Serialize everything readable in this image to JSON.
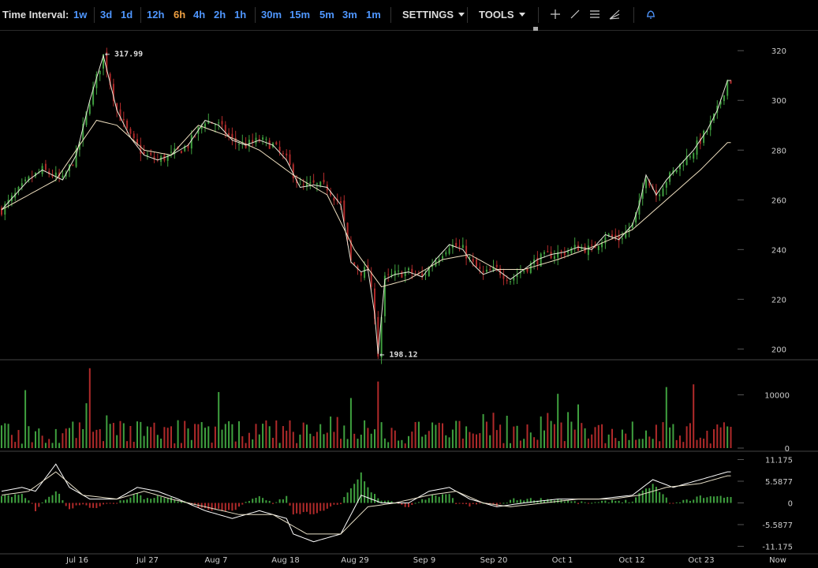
{
  "toolbar": {
    "time_interval_label": "Time Interval:",
    "timeframes": [
      {
        "label": "1w"
      },
      {
        "label": "3d"
      },
      {
        "label": "1d"
      },
      {
        "label": "12h"
      },
      {
        "label": "6h",
        "active": true
      },
      {
        "label": "4h"
      },
      {
        "label": "2h"
      },
      {
        "label": "1h"
      },
      {
        "label": "30m"
      },
      {
        "label": "15m"
      },
      {
        "label": "5m"
      },
      {
        "label": "3m"
      },
      {
        "label": "1m"
      }
    ],
    "settings_label": "SETTINGS",
    "tools_label": "TOOLS",
    "tool_icons": [
      "crosshair-icon",
      "line-tool-icon",
      "horizontal-lines-icon",
      "fan-tool-icon",
      "alert-bell-icon"
    ]
  },
  "chart_data": [
    {
      "type": "candlestick",
      "panel": "price",
      "y_ticks": [
        "320",
        "300",
        "280",
        "260",
        "240",
        "220",
        "200"
      ],
      "ylim": [
        196,
        328
      ],
      "high_label": "317.99",
      "low_label": "198.12",
      "x_ticks": [
        "Jul 16",
        "Jul 27",
        "Aug 7",
        "Aug 18",
        "Aug 29",
        "Sep 9",
        "Sep 20",
        "Oct 1",
        "Oct 12",
        "Oct 23",
        "Now"
      ],
      "approx_close": [
        [
          0,
          256
        ],
        [
          4,
          262
        ],
        [
          8,
          268
        ],
        [
          12,
          272
        ],
        [
          18,
          268
        ],
        [
          22,
          278
        ],
        [
          26,
          300
        ],
        [
          30,
          318
        ],
        [
          34,
          296
        ],
        [
          38,
          285
        ],
        [
          42,
          278
        ],
        [
          46,
          276
        ],
        [
          50,
          278
        ],
        [
          55,
          282
        ],
        [
          60,
          292
        ],
        [
          64,
          290
        ],
        [
          68,
          284
        ],
        [
          72,
          282
        ],
        [
          76,
          284
        ],
        [
          80,
          282
        ],
        [
          84,
          276
        ],
        [
          88,
          265
        ],
        [
          92,
          266
        ],
        [
          96,
          265
        ],
        [
          100,
          258
        ],
        [
          103,
          235
        ],
        [
          106,
          231
        ],
        [
          108,
          232
        ],
        [
          110,
          214
        ],
        [
          111,
          198
        ],
        [
          113,
          228
        ],
        [
          116,
          230
        ],
        [
          120,
          231
        ],
        [
          124,
          229
        ],
        [
          128,
          236
        ],
        [
          132,
          242
        ],
        [
          136,
          240
        ],
        [
          139,
          234
        ],
        [
          142,
          230
        ],
        [
          146,
          232
        ],
        [
          150,
          228
        ],
        [
          154,
          232
        ],
        [
          158,
          236
        ],
        [
          162,
          238
        ],
        [
          166,
          239
        ],
        [
          170,
          241
        ],
        [
          174,
          240
        ],
        [
          178,
          246
        ],
        [
          182,
          244
        ],
        [
          186,
          250
        ],
        [
          188,
          258
        ],
        [
          190,
          270
        ],
        [
          193,
          262
        ],
        [
          196,
          268
        ],
        [
          200,
          274
        ],
        [
          204,
          280
        ],
        [
          208,
          288
        ],
        [
          211,
          296
        ],
        [
          214,
          308
        ]
      ],
      "approx_ma": [
        [
          0,
          256
        ],
        [
          8,
          262
        ],
        [
          16,
          268
        ],
        [
          22,
          280
        ],
        [
          28,
          292
        ],
        [
          34,
          290
        ],
        [
          42,
          280
        ],
        [
          50,
          278
        ],
        [
          58,
          290
        ],
        [
          66,
          286
        ],
        [
          76,
          280
        ],
        [
          86,
          270
        ],
        [
          96,
          262
        ],
        [
          104,
          240
        ],
        [
          112,
          225
        ],
        [
          120,
          228
        ],
        [
          130,
          236
        ],
        [
          138,
          238
        ],
        [
          146,
          232
        ],
        [
          154,
          232
        ],
        [
          164,
          236
        ],
        [
          176,
          242
        ],
        [
          186,
          248
        ],
        [
          196,
          260
        ],
        [
          206,
          272
        ],
        [
          214,
          283
        ]
      ]
    },
    {
      "type": "bar",
      "panel": "volume",
      "y_ticks": [
        "10000",
        "0"
      ],
      "ylim": [
        0,
        16000
      ]
    },
    {
      "type": "line",
      "panel": "macd",
      "y_ticks": [
        "11.175",
        "5.5877",
        "0",
        "-5.5877",
        "-11.175"
      ],
      "ylim": [
        -12.5,
        12.5
      ],
      "approx_macd": [
        [
          0,
          3
        ],
        [
          6,
          4
        ],
        [
          10,
          3
        ],
        [
          16,
          10
        ],
        [
          20,
          4
        ],
        [
          26,
          1
        ],
        [
          34,
          1
        ],
        [
          40,
          4
        ],
        [
          46,
          3
        ],
        [
          52,
          1
        ],
        [
          60,
          -2
        ],
        [
          68,
          -4
        ],
        [
          76,
          -2
        ],
        [
          84,
          -4
        ],
        [
          86,
          -8
        ],
        [
          92,
          -10
        ],
        [
          100,
          -8
        ],
        [
          106,
          2
        ],
        [
          112,
          0
        ],
        [
          120,
          0
        ],
        [
          126,
          3
        ],
        [
          132,
          4
        ],
        [
          138,
          1
        ],
        [
          146,
          -1
        ],
        [
          154,
          0
        ],
        [
          164,
          1
        ],
        [
          176,
          1
        ],
        [
          186,
          2
        ],
        [
          192,
          6
        ],
        [
          198,
          4
        ],
        [
          206,
          6
        ],
        [
          214,
          8
        ]
      ],
      "approx_signal": [
        [
          0,
          2
        ],
        [
          8,
          3
        ],
        [
          16,
          8
        ],
        [
          24,
          2
        ],
        [
          34,
          1
        ],
        [
          42,
          3
        ],
        [
          50,
          1
        ],
        [
          60,
          -1
        ],
        [
          70,
          -3
        ],
        [
          80,
          -3
        ],
        [
          90,
          -8
        ],
        [
          100,
          -8
        ],
        [
          108,
          -1
        ],
        [
          116,
          0
        ],
        [
          126,
          2
        ],
        [
          134,
          3
        ],
        [
          142,
          0
        ],
        [
          150,
          -1
        ],
        [
          160,
          0
        ],
        [
          170,
          1
        ],
        [
          180,
          1
        ],
        [
          188,
          2
        ],
        [
          196,
          4
        ],
        [
          206,
          5
        ],
        [
          214,
          7
        ]
      ]
    }
  ]
}
